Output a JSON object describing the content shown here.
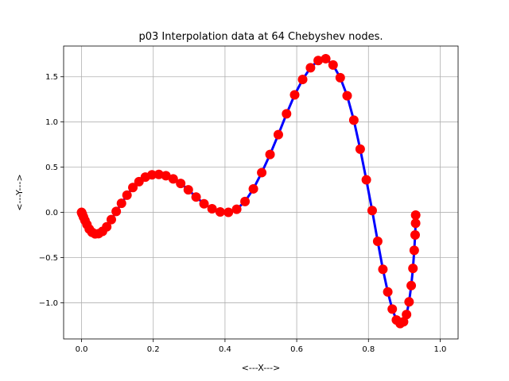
{
  "chart_data": {
    "type": "line",
    "title": "p03 Interpolation data at 64 Chebyshev nodes.",
    "xlabel": "<---X--->",
    "ylabel": "<---Y--->",
    "xlim": [
      -0.05,
      1.05
    ],
    "ylim": [
      -1.4,
      1.84
    ],
    "xticks": [
      0.0,
      0.2,
      0.4,
      0.6,
      0.8,
      1.0
    ],
    "xtick_labels": [
      "0.0",
      "0.2",
      "0.4",
      "0.6",
      "0.8",
      "1.0"
    ],
    "yticks": [
      -1.0,
      -0.5,
      0.0,
      0.5,
      1.0,
      1.5
    ],
    "ytick_labels": [
      "−1.0",
      "−0.5",
      "0.0",
      "0.5",
      "1.0",
      "1.5"
    ],
    "grid": true,
    "line_color": "#0000ff",
    "marker_color": "#ff0000",
    "series": [
      {
        "x": [
          0.0,
          0.0006,
          0.0024,
          0.0054,
          0.0096,
          0.015,
          0.0215,
          0.0291,
          0.0378,
          0.0476,
          0.0584,
          0.0702,
          0.083,
          0.0967,
          0.1113,
          0.1267,
          0.143,
          0.1601,
          0.1779,
          0.1964,
          0.2155,
          0.2353,
          0.2556,
          0.2764,
          0.2977,
          0.3194,
          0.3415,
          0.3639,
          0.3866,
          0.4095,
          0.4326,
          0.4558,
          0.4791,
          0.5024,
          0.5256,
          0.5487,
          0.5716,
          0.5942,
          0.6165,
          0.6384,
          0.6599,
          0.6809,
          0.7014,
          0.7213,
          0.7406,
          0.7592,
          0.777,
          0.7941,
          0.8104,
          0.8258,
          0.8403,
          0.8539,
          0.8664,
          0.878,
          0.8885,
          0.8979,
          0.9062,
          0.9133,
          0.9193,
          0.9241,
          0.9277,
          0.9302,
          0.9315,
          0.9317
        ],
        "y": [
          0.0,
          -0.006,
          -0.023,
          -0.052,
          -0.09,
          -0.135,
          -0.185,
          -0.22,
          -0.238,
          -0.235,
          -0.21,
          -0.16,
          -0.08,
          0.01,
          0.1,
          0.19,
          0.275,
          0.34,
          0.39,
          0.415,
          0.42,
          0.405,
          0.37,
          0.32,
          0.25,
          0.17,
          0.095,
          0.04,
          0.005,
          0.0,
          0.035,
          0.12,
          0.26,
          0.44,
          0.64,
          0.86,
          1.09,
          1.3,
          1.47,
          1.6,
          1.68,
          1.7,
          1.63,
          1.49,
          1.29,
          1.02,
          0.7,
          0.36,
          0.02,
          -0.32,
          -0.63,
          -0.88,
          -1.07,
          -1.19,
          -1.23,
          -1.21,
          -1.13,
          -0.99,
          -0.81,
          -0.62,
          -0.42,
          -0.25,
          -0.12,
          -0.03
        ]
      }
    ]
  }
}
